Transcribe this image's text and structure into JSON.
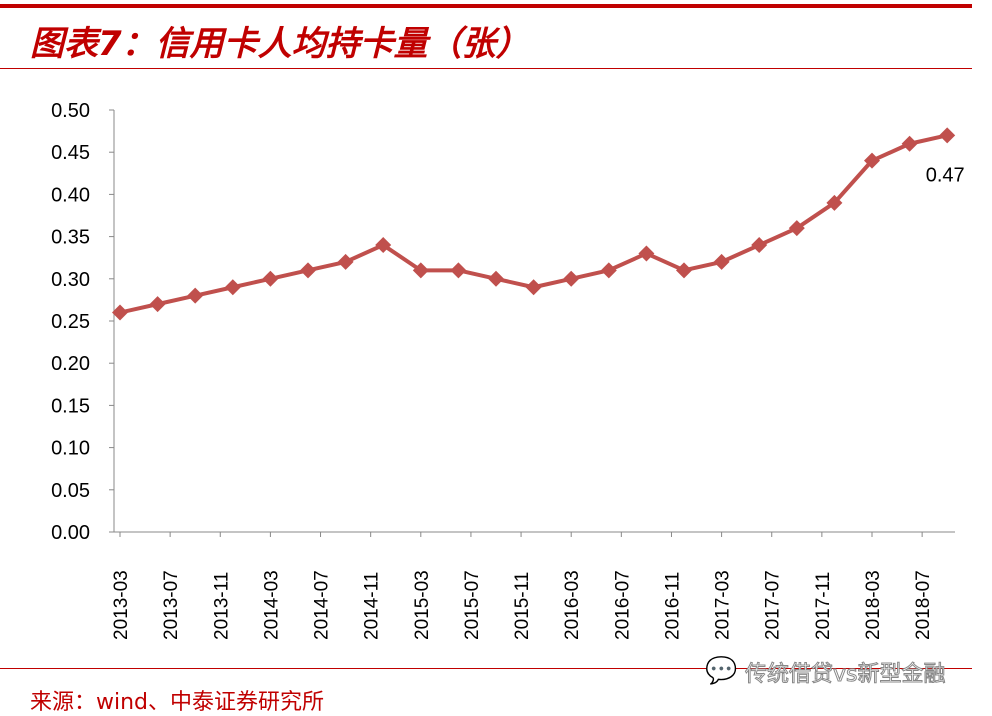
{
  "header": {
    "title": "图表7：信用卡人均持卡量（张）"
  },
  "footer": {
    "source": "来源：wind、中泰证券研究所",
    "watermark": "传统借贷vs新型金融"
  },
  "chart_data": {
    "type": "line",
    "title": "信用卡人均持卡量（张）",
    "xlabel": "",
    "ylabel": "",
    "ylim": [
      0,
      0.5
    ],
    "yticks": [
      "0.00",
      "0.05",
      "0.10",
      "0.15",
      "0.20",
      "0.25",
      "0.30",
      "0.35",
      "0.40",
      "0.45",
      "0.50"
    ],
    "xticks": [
      "2013-03",
      "2013-07",
      "2013-11",
      "2014-03",
      "2014-07",
      "2014-11",
      "2015-03",
      "2015-07",
      "2015-11",
      "2016-03",
      "2016-07",
      "2016-11",
      "2017-03",
      "2017-07",
      "2017-11",
      "2018-03",
      "2018-07"
    ],
    "x": [
      "2013-03",
      "2013-06",
      "2013-09",
      "2013-12",
      "2014-03",
      "2014-06",
      "2014-09",
      "2014-12",
      "2015-03",
      "2015-06",
      "2015-09",
      "2015-12",
      "2016-03",
      "2016-06",
      "2016-09",
      "2016-12",
      "2017-03",
      "2017-06",
      "2017-09",
      "2017-12",
      "2018-03",
      "2018-06",
      "2018-09"
    ],
    "series": [
      {
        "name": "信用卡人均持卡量",
        "color": "#c0504d",
        "values": [
          0.26,
          0.27,
          0.28,
          0.29,
          0.3,
          0.31,
          0.32,
          0.34,
          0.31,
          0.31,
          0.3,
          0.29,
          0.3,
          0.31,
          0.33,
          0.31,
          0.32,
          0.34,
          0.36,
          0.39,
          0.44,
          0.46,
          0.47
        ]
      }
    ],
    "annotations": [
      {
        "text": "0.47"
      }
    ],
    "grid": false
  }
}
